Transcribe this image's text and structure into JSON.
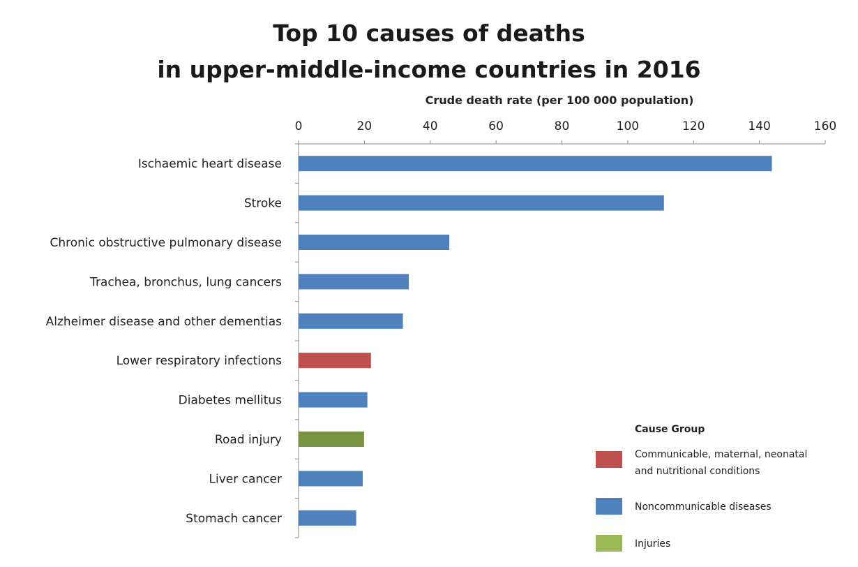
{
  "chart_data": {
    "type": "bar",
    "orientation": "horizontal",
    "title_lines": [
      "Top 10 causes of deaths",
      "in upper-middle-income countries in 2016"
    ],
    "xlabel": "Crude death rate (per 100 000 population)",
    "xlim": [
      0,
      160
    ],
    "xticks": [
      "0",
      "20",
      "40",
      "60",
      "80",
      "100",
      "120",
      "140",
      "160"
    ],
    "axis_position": "top",
    "categories": [
      "Ischaemic heart disease",
      "Stroke",
      "Chronic obstructive pulmonary disease",
      "Trachea, bronchus, lung cancers",
      "Alzheimer disease and other dementias",
      "Lower respiratory infections",
      "Diabetes mellitus",
      "Road injury",
      "Liver cancer",
      "Stomach cancer"
    ],
    "values": [
      143.8,
      111.0,
      45.8,
      33.5,
      31.7,
      22.0,
      20.9,
      19.9,
      19.5,
      17.5
    ],
    "groups": [
      1,
      1,
      1,
      1,
      1,
      0,
      1,
      2,
      1,
      1
    ],
    "legend": {
      "title": "Cause Group",
      "position": "bottom-right",
      "entries": [
        {
          "lines": [
            "Communicable, maternal, neonatal",
            "and nutritional conditions"
          ],
          "color": "#c0504d"
        },
        {
          "lines": [
            "Noncommunicable diseases"
          ],
          "color": "#4f81bd"
        },
        {
          "lines": [
            "Injuries"
          ],
          "color": "#9bbb59"
        }
      ]
    },
    "bar_colors": [
      "#c0504d",
      "#4f81bd",
      "#779442"
    ],
    "grid": false
  }
}
